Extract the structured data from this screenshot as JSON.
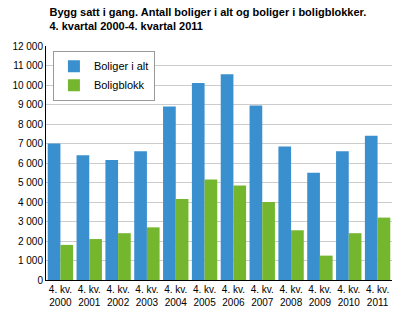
{
  "chart_data": {
    "type": "bar",
    "title": "Bygg satt i gang. Antall boliger i alt og boliger i boligblokker.",
    "subtitle": "4. kvartal 2000-4. kvartal 2011",
    "categories": [
      "4. kv. 2000",
      "4. kv. 2001",
      "4. kv. 2002",
      "4. kv. 2003",
      "4. kv. 2004",
      "4. kv. 2005",
      "4. kv. 2006",
      "4. kv. 2007",
      "4. kv. 2008",
      "4. kv. 2009",
      "4. kv. 2010",
      "4. kv. 2011"
    ],
    "series": [
      {
        "name": "Boliger i alt",
        "color": "#3a8fcf",
        "values": [
          7000,
          6400,
          6150,
          6600,
          8900,
          10100,
          10550,
          8950,
          6850,
          5500,
          6600,
          7400
        ]
      },
      {
        "name": "Boligblokk",
        "color": "#74b72e",
        "values": [
          1800,
          2100,
          2400,
          2700,
          4150,
          5150,
          4850,
          4000,
          2550,
          1250,
          2400,
          3200
        ]
      }
    ],
    "ylim": [
      0,
      12000
    ],
    "yticks": [
      0,
      {
        "value": 1000,
        "label": "1 000"
      },
      {
        "value": 2000,
        "label": "2 000"
      },
      {
        "value": 3000,
        "label": "3 000"
      },
      {
        "value": 4000,
        "label": "4 000"
      },
      {
        "value": 5000,
        "label": "5 000"
      },
      {
        "value": 6000,
        "label": "6 000"
      },
      {
        "value": 7000,
        "label": "7 000"
      },
      {
        "value": 8000,
        "label": "8 000"
      },
      {
        "value": 9000,
        "label": "9 000"
      },
      {
        "value": 10000,
        "label": "10 000"
      },
      {
        "value": 11000,
        "label": "11 000"
      },
      {
        "value": 12000,
        "label": "12 000"
      }
    ],
    "grid": true,
    "legend": "top-left"
  }
}
